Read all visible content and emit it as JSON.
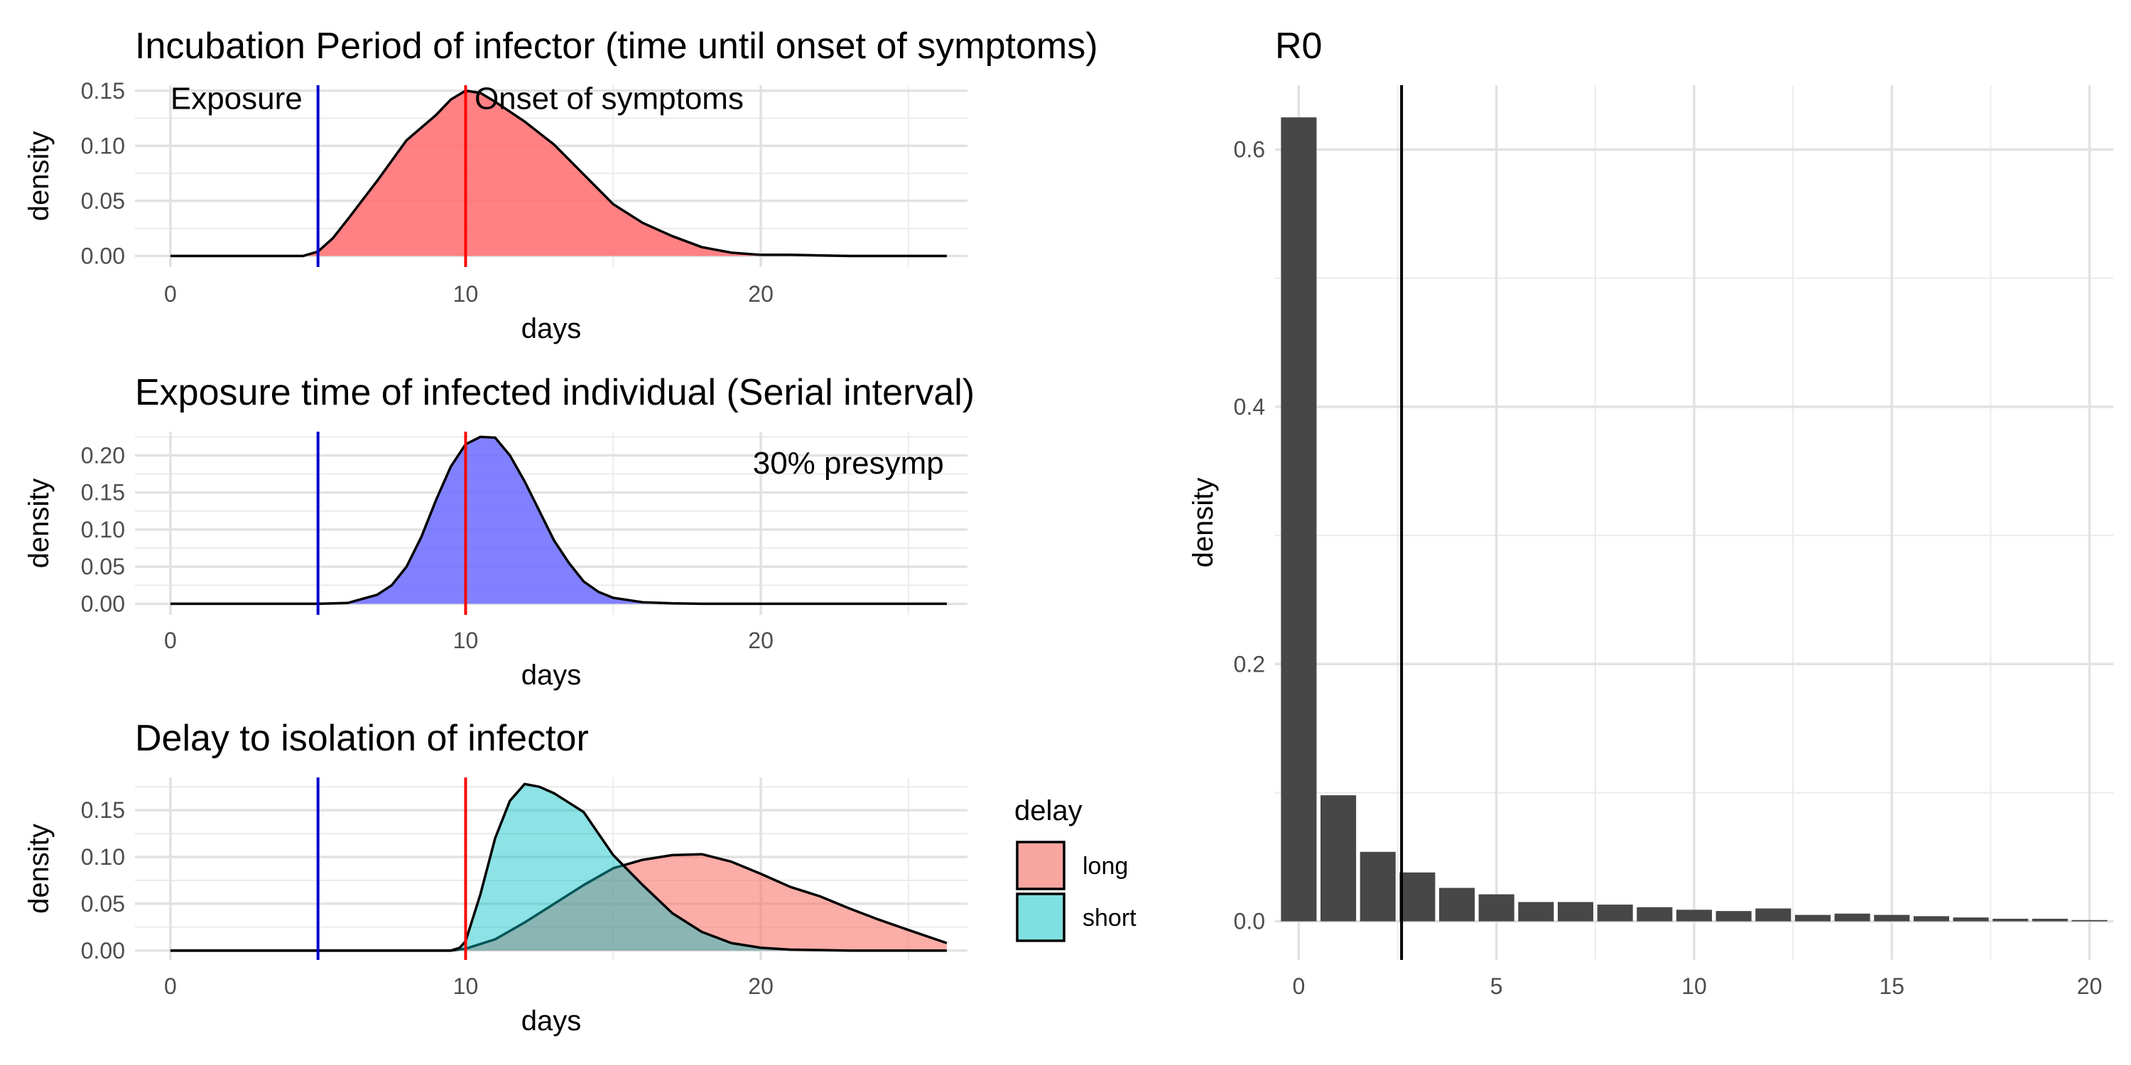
{
  "chart_data": [
    {
      "id": "incubation",
      "type": "area",
      "title": "Incubation Period of infector (time until onset of symptoms)",
      "xlabel": "days",
      "ylabel": "density",
      "xlim": [
        -1.2,
        27
      ],
      "ylim": [
        -0.01,
        0.155
      ],
      "xticks": [
        0,
        10,
        20
      ],
      "yticks": [
        0.0,
        0.05,
        0.1,
        0.15
      ],
      "ytick_labels": [
        "0.00",
        "0.05",
        "0.10",
        "0.15"
      ],
      "vlines": [
        {
          "x": 5,
          "color": "#0000cc"
        },
        {
          "x": 10,
          "color": "#ff0000"
        }
      ],
      "annotations": [
        {
          "text": "Exposure",
          "x": 0,
          "y": 0.143,
          "anchor": "start"
        },
        {
          "text": "Onset of symptoms",
          "x": 10.3,
          "y": 0.143,
          "anchor": "start"
        }
      ],
      "series": [
        {
          "fill": "#ff6b6f",
          "opacity": 0.85,
          "x": [
            0,
            4.5,
            5,
            5.5,
            6,
            7,
            8,
            9,
            9.5,
            10,
            10.5,
            11,
            12,
            13,
            14,
            15,
            16,
            17,
            18,
            19,
            20,
            21,
            22,
            23,
            24,
            25,
            26.3
          ],
          "y": [
            0,
            0,
            0.004,
            0.016,
            0.033,
            0.068,
            0.105,
            0.128,
            0.142,
            0.15,
            0.148,
            0.14,
            0.122,
            0.101,
            0.074,
            0.047,
            0.03,
            0.018,
            0.008,
            0.003,
            0.001,
            0.001,
            0.0005,
            0,
            0,
            0,
            0
          ]
        }
      ]
    },
    {
      "id": "serial",
      "type": "area",
      "title": "Exposure time of infected individual (Serial interval)",
      "xlabel": "days",
      "ylabel": "density",
      "xlim": [
        -1.2,
        27
      ],
      "ylim": [
        -0.015,
        0.232
      ],
      "xticks": [
        0,
        10,
        20
      ],
      "yticks": [
        0.0,
        0.05,
        0.1,
        0.15,
        0.2
      ],
      "ytick_labels": [
        "0.00",
        "0.05",
        "0.10",
        "0.15",
        "0.20"
      ],
      "vlines": [
        {
          "x": 5,
          "color": "#0000cc"
        },
        {
          "x": 10,
          "color": "#ff0000"
        }
      ],
      "annotations": [
        {
          "text": "30% presymp",
          "x": 26.2,
          "y": 0.19,
          "anchor": "end"
        }
      ],
      "series": [
        {
          "fill": "#6b6bff",
          "opacity": 0.85,
          "x": [
            0,
            5,
            6,
            7,
            7.5,
            8,
            8.5,
            9,
            9.5,
            10,
            10.5,
            11,
            11.5,
            12,
            12.5,
            13,
            13.5,
            14,
            14.5,
            15,
            16,
            17,
            18,
            26.3
          ],
          "y": [
            0,
            0,
            0.001,
            0.012,
            0.025,
            0.05,
            0.09,
            0.14,
            0.185,
            0.215,
            0.225,
            0.224,
            0.2,
            0.165,
            0.125,
            0.085,
            0.055,
            0.03,
            0.016,
            0.008,
            0.002,
            0.0005,
            0,
            0
          ]
        }
      ]
    },
    {
      "id": "delay",
      "type": "area",
      "title": "Delay to isolation of infector",
      "xlabel": "days",
      "ylabel": "density",
      "xlim": [
        -1.2,
        27
      ],
      "ylim": [
        -0.01,
        0.185
      ],
      "xticks": [
        0,
        10,
        20
      ],
      "yticks": [
        0.0,
        0.05,
        0.1,
        0.15
      ],
      "ytick_labels": [
        "0.00",
        "0.05",
        "0.10",
        "0.15"
      ],
      "vlines": [
        {
          "x": 5,
          "color": "#0000cc"
        },
        {
          "x": 10,
          "color": "#ff0000"
        }
      ],
      "legend": {
        "title": "delay",
        "position": "right"
      },
      "series": [
        {
          "name": "long",
          "fill": "#f8766d",
          "opacity": 0.6,
          "x": [
            0,
            9.5,
            10,
            11,
            12,
            13,
            14,
            15,
            16,
            17,
            18,
            19,
            20,
            21,
            22,
            23,
            24,
            25,
            26.3
          ],
          "y": [
            0,
            0,
            0.002,
            0.012,
            0.03,
            0.05,
            0.07,
            0.088,
            0.097,
            0.102,
            0.103,
            0.095,
            0.082,
            0.068,
            0.058,
            0.045,
            0.033,
            0.022,
            0.008
          ]
        },
        {
          "name": "short",
          "fill": "#00bfc4",
          "opacity": 0.45,
          "x": [
            0,
            9.5,
            9.8,
            10,
            10.5,
            11,
            11.5,
            12,
            12.5,
            13,
            13.5,
            14,
            14.5,
            15,
            16,
            17,
            18,
            19,
            20,
            21,
            22,
            23,
            26.3
          ],
          "y": [
            0,
            0,
            0.003,
            0.01,
            0.06,
            0.12,
            0.16,
            0.178,
            0.175,
            0.168,
            0.158,
            0.148,
            0.125,
            0.102,
            0.07,
            0.04,
            0.02,
            0.008,
            0.003,
            0.001,
            0.0005,
            0,
            0
          ]
        }
      ]
    },
    {
      "id": "r0",
      "type": "bar",
      "title": "R0",
      "xlabel": "",
      "ylabel": "density",
      "xlim": [
        -0.6,
        20.6
      ],
      "ylim": [
        -0.03,
        0.65
      ],
      "xticks": [
        0,
        5,
        10,
        15,
        20
      ],
      "yticks": [
        0.0,
        0.2,
        0.4,
        0.6
      ],
      "ytick_labels": [
        "0.0",
        "0.2",
        "0.4",
        "0.6"
      ],
      "bar_color": "#474747",
      "vline": {
        "x": 2.6,
        "color": "#000000"
      },
      "categories": [
        0,
        1,
        2,
        3,
        4,
        5,
        6,
        7,
        8,
        9,
        10,
        11,
        12,
        13,
        14,
        15,
        16,
        17,
        18,
        19,
        20
      ],
      "values": [
        0.625,
        0.098,
        0.054,
        0.038,
        0.026,
        0.021,
        0.015,
        0.015,
        0.013,
        0.011,
        0.009,
        0.008,
        0.01,
        0.005,
        0.006,
        0.005,
        0.004,
        0.003,
        0.002,
        0.002,
        0.001
      ]
    }
  ]
}
